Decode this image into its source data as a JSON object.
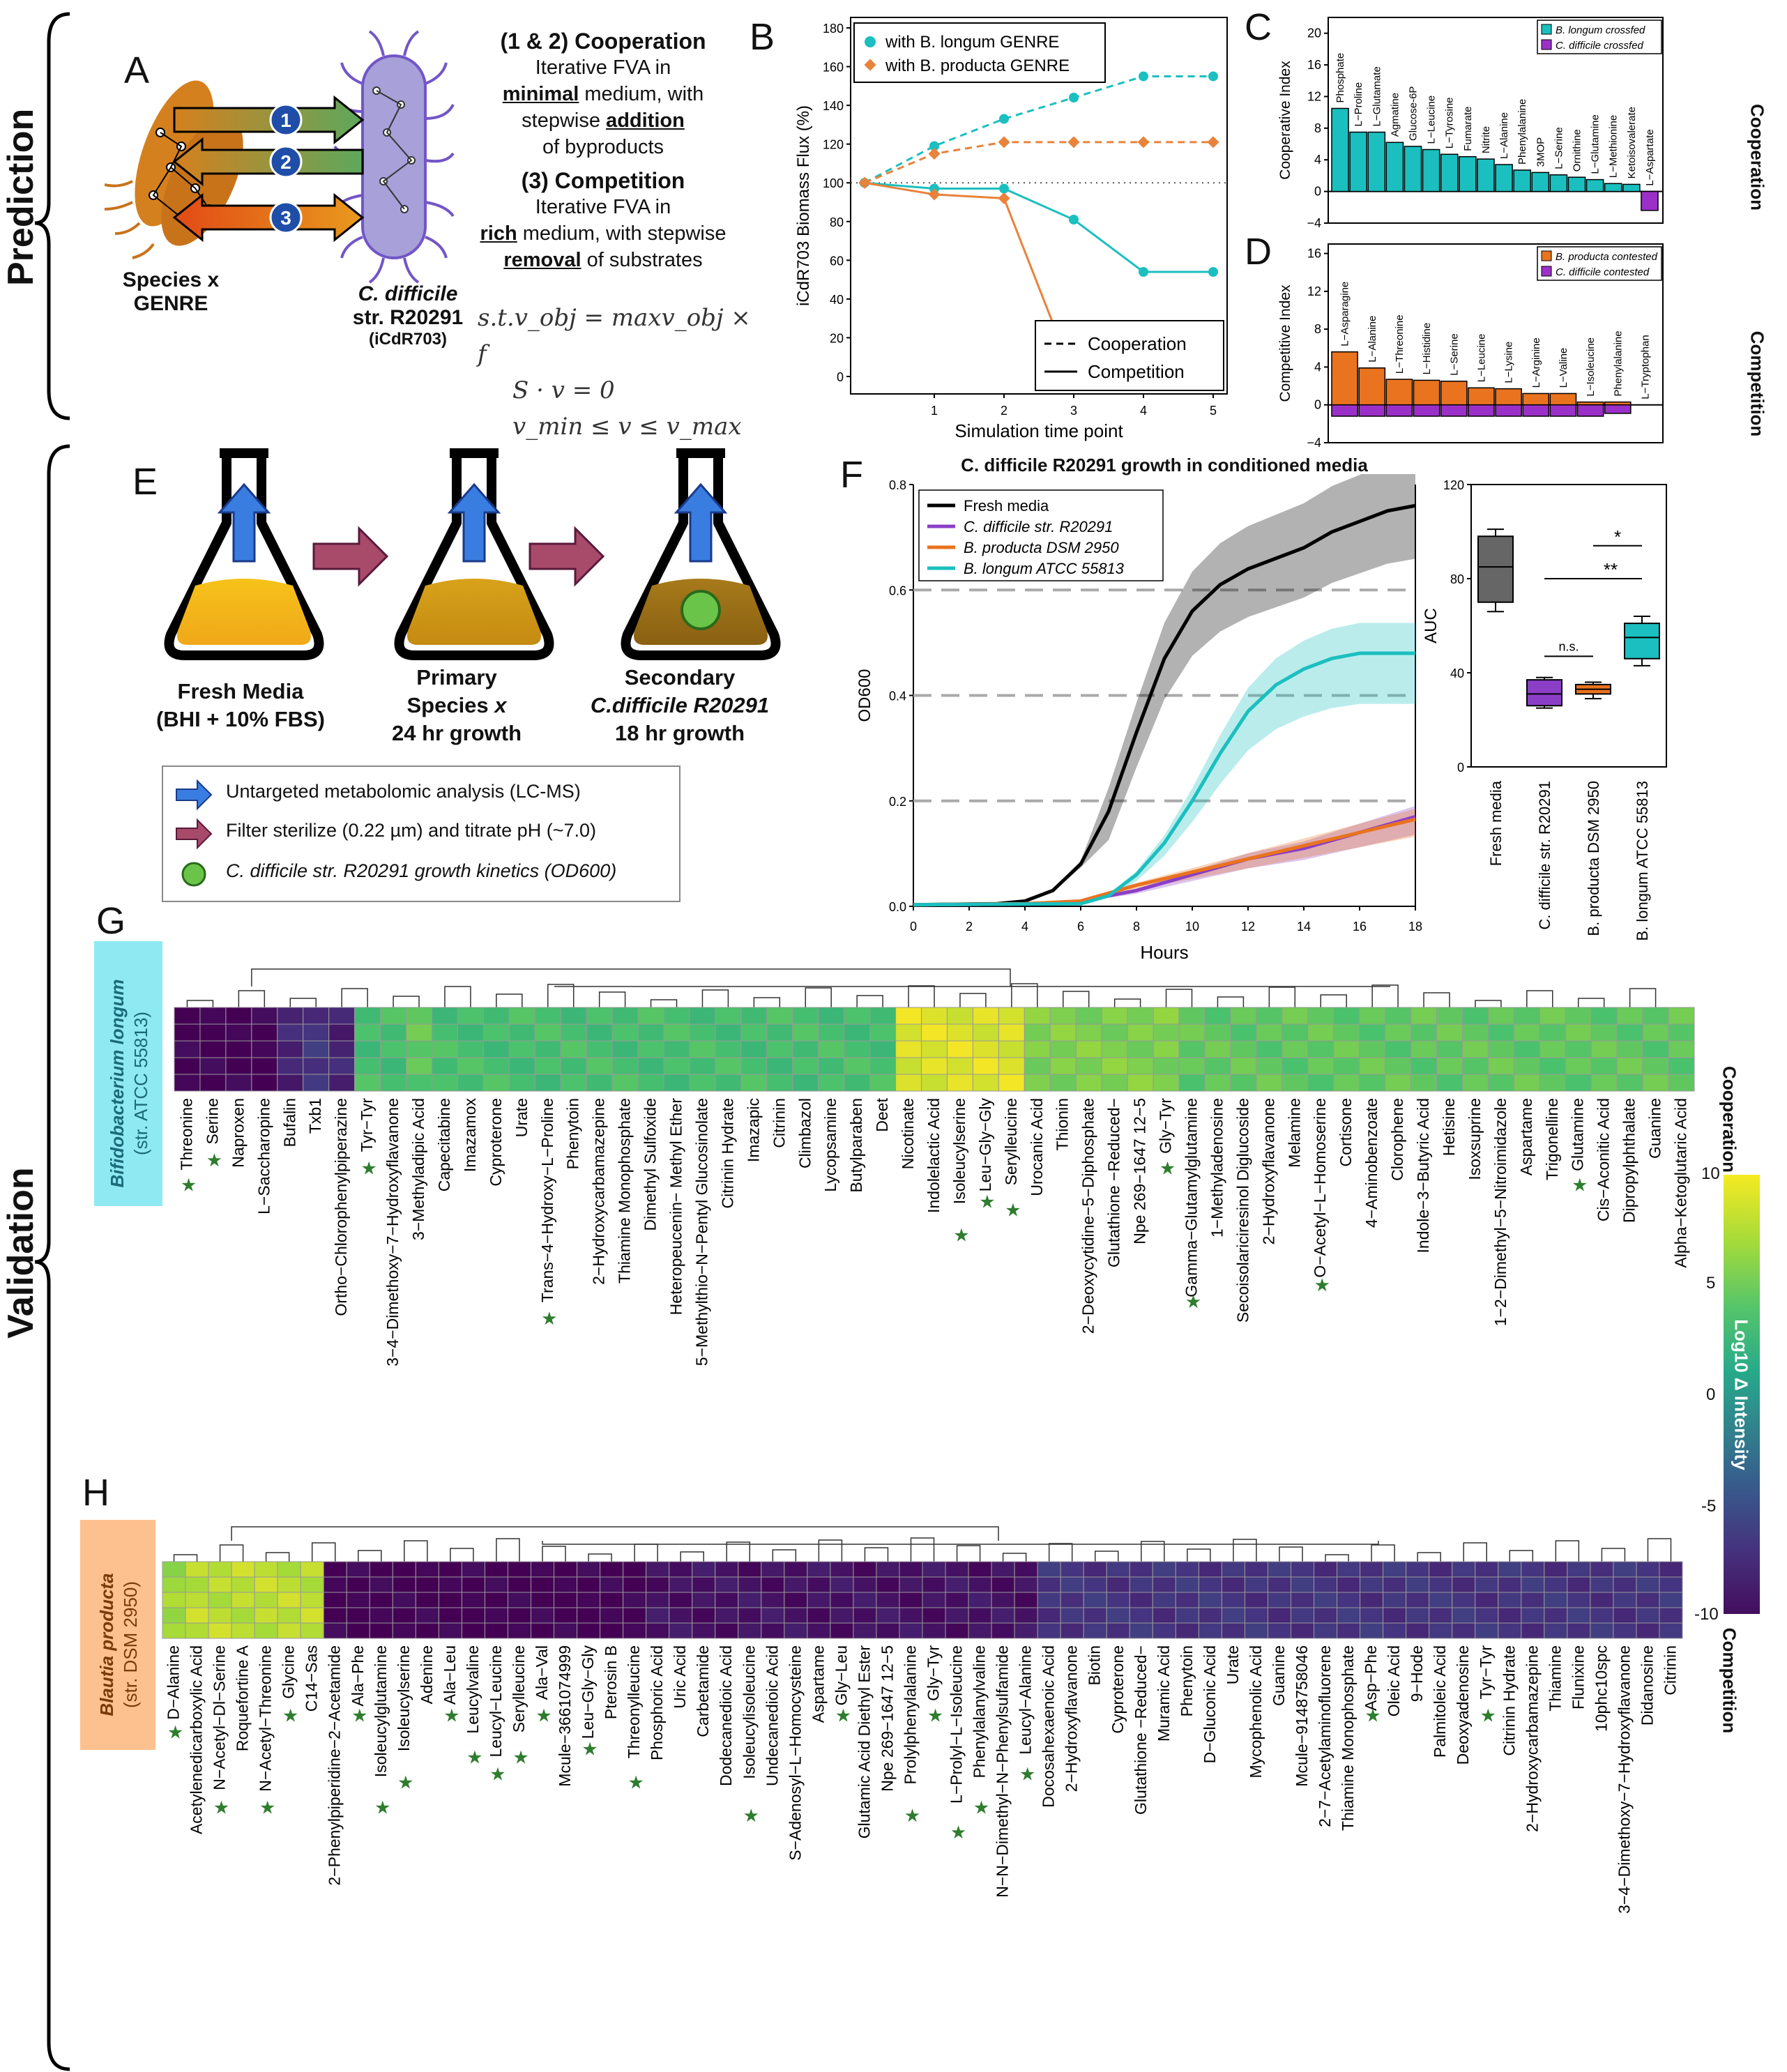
{
  "side_labels": {
    "prediction": "Prediction",
    "validation": "Validation"
  },
  "panel_letters": {
    "A": "A",
    "B": "B",
    "C": "C",
    "D": "D",
    "E": "E",
    "F": "F",
    "G": "G",
    "H": "H"
  },
  "panelA": {
    "coop_title": "(1 & 2) Cooperation",
    "coop_l1": "Iterative FVA in",
    "coop_l2a": "minimal",
    "coop_l2b": " medium, with",
    "coop_l3a": "stepwise ",
    "coop_l3b": "addition",
    "coop_l4": "of byproducts",
    "comp_title": "(3) Competition",
    "comp_l1": "Iterative FVA in",
    "comp_l2a": "rich",
    "comp_l2b": " medium, with stepwise",
    "comp_l3a": "removal",
    "comp_l3b": " of substrates",
    "species_l1": "Species x",
    "species_l2": "GENRE",
    "cdiff_l1": "C. difficile",
    "cdiff_l2": "str. R20291",
    "cdiff_l3": "(iCdR703)",
    "arrows": [
      "1",
      "2",
      "3"
    ],
    "eq1": "s.t.v_obj = maxv_obj × f",
    "eq2": "S · v = 0",
    "eq3": "v_min ≤ v ≤ v_max"
  },
  "panelB": {
    "chart_data": {
      "type": "line",
      "ylabel": "iCdR703 Biomass Flux (%)",
      "xlabel": "Simulation time point",
      "x": [
        0,
        1,
        2,
        3,
        4,
        5
      ],
      "xticks": [
        "1",
        "2",
        "3",
        "4",
        "5"
      ],
      "yticks": [
        "0",
        "20",
        "40",
        "60",
        "80",
        "100",
        "120",
        "140",
        "160",
        "180"
      ],
      "ylim": [
        0,
        180
      ],
      "legend_top": [
        "with B. longum GENRE",
        "with B. producta GENRE"
      ],
      "legend_bottom": [
        "Cooperation",
        "Competition"
      ],
      "series": [
        {
          "name": "with B. longum GENRE",
          "style": "Cooperation",
          "color": "#1bbfbf",
          "values": [
            100,
            119,
            133,
            144,
            155,
            155
          ]
        },
        {
          "name": "with B. longum GENRE",
          "style": "Competition",
          "color": "#1bbfbf",
          "values": [
            100,
            97,
            97,
            81,
            54,
            54
          ]
        },
        {
          "name": "with B. producta GENRE",
          "style": "Cooperation",
          "color": "#e9823a",
          "values": [
            100,
            115,
            121,
            121,
            121,
            121
          ]
        },
        {
          "name": "with B. producta GENRE",
          "style": "Competition",
          "color": "#e9823a",
          "values": [
            100,
            94,
            92,
            0,
            0,
            0
          ]
        }
      ]
    }
  },
  "panelC": {
    "chart_data": {
      "type": "bar",
      "ylabel": "Cooperative Index",
      "side": "Cooperation",
      "legend": [
        "B. longum crossfed",
        "C. difficile crossfed"
      ],
      "yticks": [
        "−4",
        "0",
        "4",
        "8",
        "12",
        "16",
        "20"
      ],
      "ylim": [
        -4,
        22
      ],
      "categories": [
        "Phosphate",
        "L−Proline",
        "L−Glutamate",
        "Agmatine",
        "Glucose-6P",
        "L−Leucine",
        "L−Tyrosine",
        "Fumarate",
        "Nitrite",
        "L−Alanine",
        "Phenylalanine",
        "3MOP",
        "L−Serine",
        "Ornithine",
        "L−Glutamine",
        "L−Methionine",
        "Ketoisovalerate",
        "L−Aspartate"
      ],
      "values": [
        10.5,
        7.5,
        7.5,
        6.2,
        5.7,
        5.3,
        4.7,
        4.4,
        4.1,
        3.4,
        2.7,
        2.4,
        2.1,
        1.8,
        1.5,
        1.0,
        0.9,
        -2.4
      ],
      "colors": {
        "pos": "#1bbfbf",
        "neg": "#9b30c8"
      }
    }
  },
  "panelD": {
    "chart_data": {
      "type": "bar",
      "ylabel": "Competitive Index",
      "side": "Competition",
      "legend": [
        "B. producta contested",
        "C. difficile contested"
      ],
      "yticks": [
        "−4",
        "0",
        "4",
        "8",
        "12",
        "16"
      ],
      "ylim": [
        -4,
        17
      ],
      "categories": [
        "L−Asparagine",
        "L−Alanine",
        "L−Threonine",
        "L−Histidine",
        "L−Serine",
        "L−Leucine",
        "L−Lysine",
        "L−Arginine",
        "L−Valine",
        "L−Isoleucine",
        "Phenylalanine",
        "L−Tryptophan"
      ],
      "values": [
        5.6,
        3.9,
        2.7,
        2.6,
        2.5,
        1.8,
        1.7,
        1.2,
        1.2,
        0.3,
        0.3,
        0
      ],
      "neg_values": [
        -1.2,
        -1.2,
        -1.2,
        -1.2,
        -1.2,
        -1.2,
        -1.2,
        -1.2,
        -1.2,
        -1.2,
        -0.9,
        0
      ],
      "colors": {
        "pos": "#e9731f",
        "neg": "#9b30c8"
      }
    }
  },
  "panelE": {
    "flask1_l1": "Fresh Media",
    "flask1_l2": "(BHI + 10% FBS)",
    "flask2_l1": "Primary",
    "flask2_l2": "Species x",
    "flask2_l3": "24 hr growth",
    "flask3_l1": "Secondary",
    "flask3_l2": "C.difficile R20291",
    "flask3_l3": "18 hr growth",
    "legend": [
      "Untargeted metabolomic analysis (LC-MS)",
      "Filter sterilize (0.22 µm) and titrate pH (~7.0)",
      "C. difficile str. R20291 growth kinetics (OD600)"
    ]
  },
  "panelF": {
    "title": "C. difficile R20291 growth in conditioned media",
    "chart_data": {
      "type": "line",
      "xlabel": "Hours",
      "ylabel": "OD600",
      "xticks": [
        "0",
        "2",
        "4",
        "6",
        "8",
        "10",
        "12",
        "14",
        "16",
        "18"
      ],
      "yticks": [
        "0.0",
        "0.2",
        "0.4",
        "0.6",
        "0.8"
      ],
      "xlim": [
        0,
        18
      ],
      "ylim": [
        0,
        0.8
      ],
      "series": [
        {
          "name": "Fresh media",
          "color": "#000000",
          "x": [
            0,
            3,
            4,
            5,
            6,
            7,
            8,
            9,
            10,
            11,
            12,
            13,
            14,
            15,
            16,
            17,
            18
          ],
          "y": [
            0.003,
            0.005,
            0.01,
            0.03,
            0.08,
            0.18,
            0.33,
            0.47,
            0.56,
            0.61,
            0.64,
            0.66,
            0.68,
            0.71,
            0.73,
            0.75,
            0.76
          ]
        },
        {
          "name": "C. difficile str. R20291",
          "color": "#8b3fc6",
          "x": [
            0,
            5,
            6,
            8,
            10,
            12,
            14,
            16,
            18
          ],
          "y": [
            0.003,
            0.005,
            0.01,
            0.03,
            0.06,
            0.09,
            0.11,
            0.14,
            0.17
          ]
        },
        {
          "name": "B. producta DSM 2950",
          "color": "#e9731f",
          "x": [
            0,
            4,
            6,
            8,
            10,
            12,
            14,
            16,
            18
          ],
          "y": [
            0.003,
            0.005,
            0.01,
            0.04,
            0.065,
            0.09,
            0.115,
            0.14,
            0.165
          ]
        },
        {
          "name": "B. longum ATCC 55813",
          "color": "#1bbfbf",
          "x": [
            0,
            6,
            7,
            8,
            9,
            10,
            11,
            12,
            13,
            14,
            15,
            16,
            17,
            18
          ],
          "y": [
            0.003,
            0.005,
            0.02,
            0.06,
            0.12,
            0.2,
            0.29,
            0.37,
            0.42,
            0.45,
            0.47,
            0.48,
            0.48,
            0.48
          ]
        }
      ]
    },
    "auc": {
      "ylabel": "AUC",
      "yticks": [
        "0",
        "40",
        "80",
        "120"
      ],
      "ylim": [
        0,
        120
      ],
      "categories": [
        "Fresh media",
        "C. difficile str. R20291",
        "B. producta DSM 2950",
        "B. longum ATCC 55813"
      ],
      "boxes": [
        {
          "min": 66,
          "q1": 70,
          "median": 85,
          "q3": 98,
          "max": 101,
          "color": "#666666"
        },
        {
          "min": 25,
          "q1": 26,
          "median": 31,
          "q3": 37,
          "max": 38,
          "color": "#8b3fc6"
        },
        {
          "min": 29,
          "q1": 31,
          "median": 33,
          "q3": 35,
          "max": 36,
          "color": "#e9731f"
        },
        {
          "min": 43,
          "q1": 46,
          "median": 55,
          "q3": 61,
          "max": 64,
          "color": "#1bbfbf"
        }
      ],
      "sig": [
        "n.s.",
        "**",
        "*"
      ]
    }
  },
  "panelG": {
    "org_l1": "Bifidobacterium longum",
    "org_l2": "(str. ATCC 55813)",
    "metabolites": [
      "Threonine",
      "Serine",
      "Naproxen",
      "L−Saccharopine",
      "Bufalin",
      "Txb1",
      "Ortho−Chlorophenylpiperazine",
      "Tyr−Tyr",
      "3−4−Dimethoxy−7−Hydroxyflavanone",
      "3−Methyladipic Acid",
      "Capecitabine",
      "Imazamox",
      "Cyproterone",
      "Urate",
      "Trans−4−Hydroxy−L−Proline",
      "Phenytoin",
      "2−Hydroxycarbamazepine",
      "Thiamine Monophosphate",
      "Dimethyl Sulfoxide",
      "Heteropeucenin− Methyl Ether",
      "5−Methylthio−N−Pentyl Glucosinolate",
      "Citrinin Hydrate",
      "Imazapic",
      "Citrinin",
      "Climbazol",
      "Lycopsamine",
      "Butylparaben",
      "Deet",
      "Nicotinate",
      "Indolelactic Acid",
      "Isoleucylserine",
      "Leu−Gly−Gly",
      "Serylleucine",
      "Urocanic Acid",
      "Thionin",
      "2−Deoxycytidine−5−Diphosphate",
      "Glutathione −Reduced−",
      "Npe 269−1647 12−5",
      "Gly−Tyr",
      "Gamma−Glutamylglutamine",
      "1−Methyladenosine",
      "Secoisolariciresinol Diglucoside",
      "2−Hydroxyflavanone",
      "Melamine",
      "O−Acetyl−L−Homoserine",
      "Cortisone",
      "4−Aminobenzoate",
      "Clorophene",
      "Indole−3−Butyric Acid",
      "Hetisine",
      "Isoxsuprine",
      "1−2−Dimethyl−5−Nitroimidazole",
      "Aspartame",
      "Trigonelline",
      "Glutamine",
      "Cis−Aconitic Acid",
      "Dipropylphthalate",
      "Guanine",
      "Alpha−Ketoglutaric Acid"
    ],
    "starred": [
      0,
      1,
      7,
      14,
      30,
      31,
      32,
      38,
      39,
      44,
      54
    ],
    "values": [
      -10,
      -10,
      -10,
      -10,
      -8,
      -7,
      -8,
      4,
      4,
      5,
      4,
      4,
      4,
      4,
      4,
      4,
      4,
      4,
      4,
      4,
      4,
      4,
      4,
      4,
      4,
      4,
      4,
      4,
      9,
      9,
      9,
      9,
      9,
      6,
      6,
      6,
      6,
      6,
      6,
      5,
      5,
      5,
      5,
      5,
      5,
      5,
      5,
      5,
      5,
      5,
      5,
      5,
      5,
      5,
      5,
      5,
      5,
      5,
      5
    ]
  },
  "panelH": {
    "org_l1": "Blautia producta",
    "org_l2": "(str. DSM 2950)",
    "metabolites": [
      "D−Alanine",
      "Acetylenedicarboxylic Acid",
      "N−Acetyl−Dl−Serine",
      "Roquefortine A",
      "N−Acetyl−Threonine",
      "Glycine",
      "C14−Sas",
      "2−Phenylpiperidine−2−Acetamide",
      "Ala−Phe",
      "Isoleucylglutamine",
      "Isoleucylserine",
      "Adenine",
      "Ala−Leu",
      "Leucylvaline",
      "Leucyl−Leucine",
      "Serylleucine",
      "Ala−Val",
      "Mcule−3661074999",
      "Leu−Gly−Gly",
      "Pterosin B",
      "Threonylleucine",
      "Phosphoric Acid",
      "Uric Acid",
      "Carbetamide",
      "Dodecanedioic Acid",
      "Isoleucylisoleucine",
      "Undecanedioic Acid",
      "S−Adenosyl−L−Homocysteine",
      "Aspartame",
      "Gly−Leu",
      "Glutamic Acid Diethyl Ester",
      "Npe 269−1647 12−5",
      "Prolylphenylalanine",
      "Gly−Tyr",
      "L−Prolyl−L−Isoleucine",
      "Phenylalanylvaline",
      "N−N−Dimethyl−N−Phenylsulfamide",
      "Leucyl−Alanine",
      "Docosahexaenoic Acid",
      "2−Hydroxyflavanone",
      "Biotin",
      "Cyproterone",
      "Glutathione −Reduced−",
      "Muramic Acid",
      "Phenytoin",
      "D−Gluconic Acid",
      "Urate",
      "Mycophenolic Acid",
      "Guanine",
      "Mcule−9148758046",
      "2−7−Acetylaminofluorene",
      "Thiamine Monophosphate",
      "Asp−Phe",
      "Oleic Acid",
      "9−Hode",
      "Palmitoleic Acid",
      "Deoxyadenosine",
      "Tyr−Tyr",
      "Citrinin Hydrate",
      "2−Hydroxycarbamazepine",
      "Thiamine",
      "Flunixine",
      "10phc10spc",
      "3−4−Dimethoxy−7−Hydroxyflavanone",
      "Didanosine",
      "Citrinin"
    ],
    "starred": [
      0,
      2,
      4,
      5,
      8,
      9,
      10,
      12,
      13,
      14,
      15,
      16,
      18,
      20,
      25,
      29,
      32,
      33,
      34,
      35,
      37,
      52,
      57
    ],
    "values": [
      7,
      8,
      8,
      8,
      8,
      8,
      8,
      -10,
      -10,
      -10,
      -10,
      -10,
      -10,
      -10,
      -10,
      -10,
      -10,
      -10,
      -10,
      -10,
      -10,
      -9,
      -9,
      -9,
      -9,
      -9,
      -9,
      -9,
      -9,
      -9,
      -9,
      -9,
      -9,
      -9,
      -9,
      -9,
      -9,
      -9,
      -7,
      -7,
      -7,
      -7,
      -7,
      -7,
      -7,
      -7,
      -7,
      -7,
      -7,
      -7,
      -7,
      -7,
      -7,
      -7,
      -7,
      -7,
      -7,
      -7,
      -7,
      -7,
      -7,
      -7,
      -7,
      -7,
      -7,
      -7
    ]
  },
  "colorbar": {
    "top_label": "Cooperation",
    "bottom_label": "Competition",
    "title": "Log10 Δ Intensity",
    "ticks": [
      "10",
      "5",
      "0",
      "-5",
      "-10"
    ]
  }
}
